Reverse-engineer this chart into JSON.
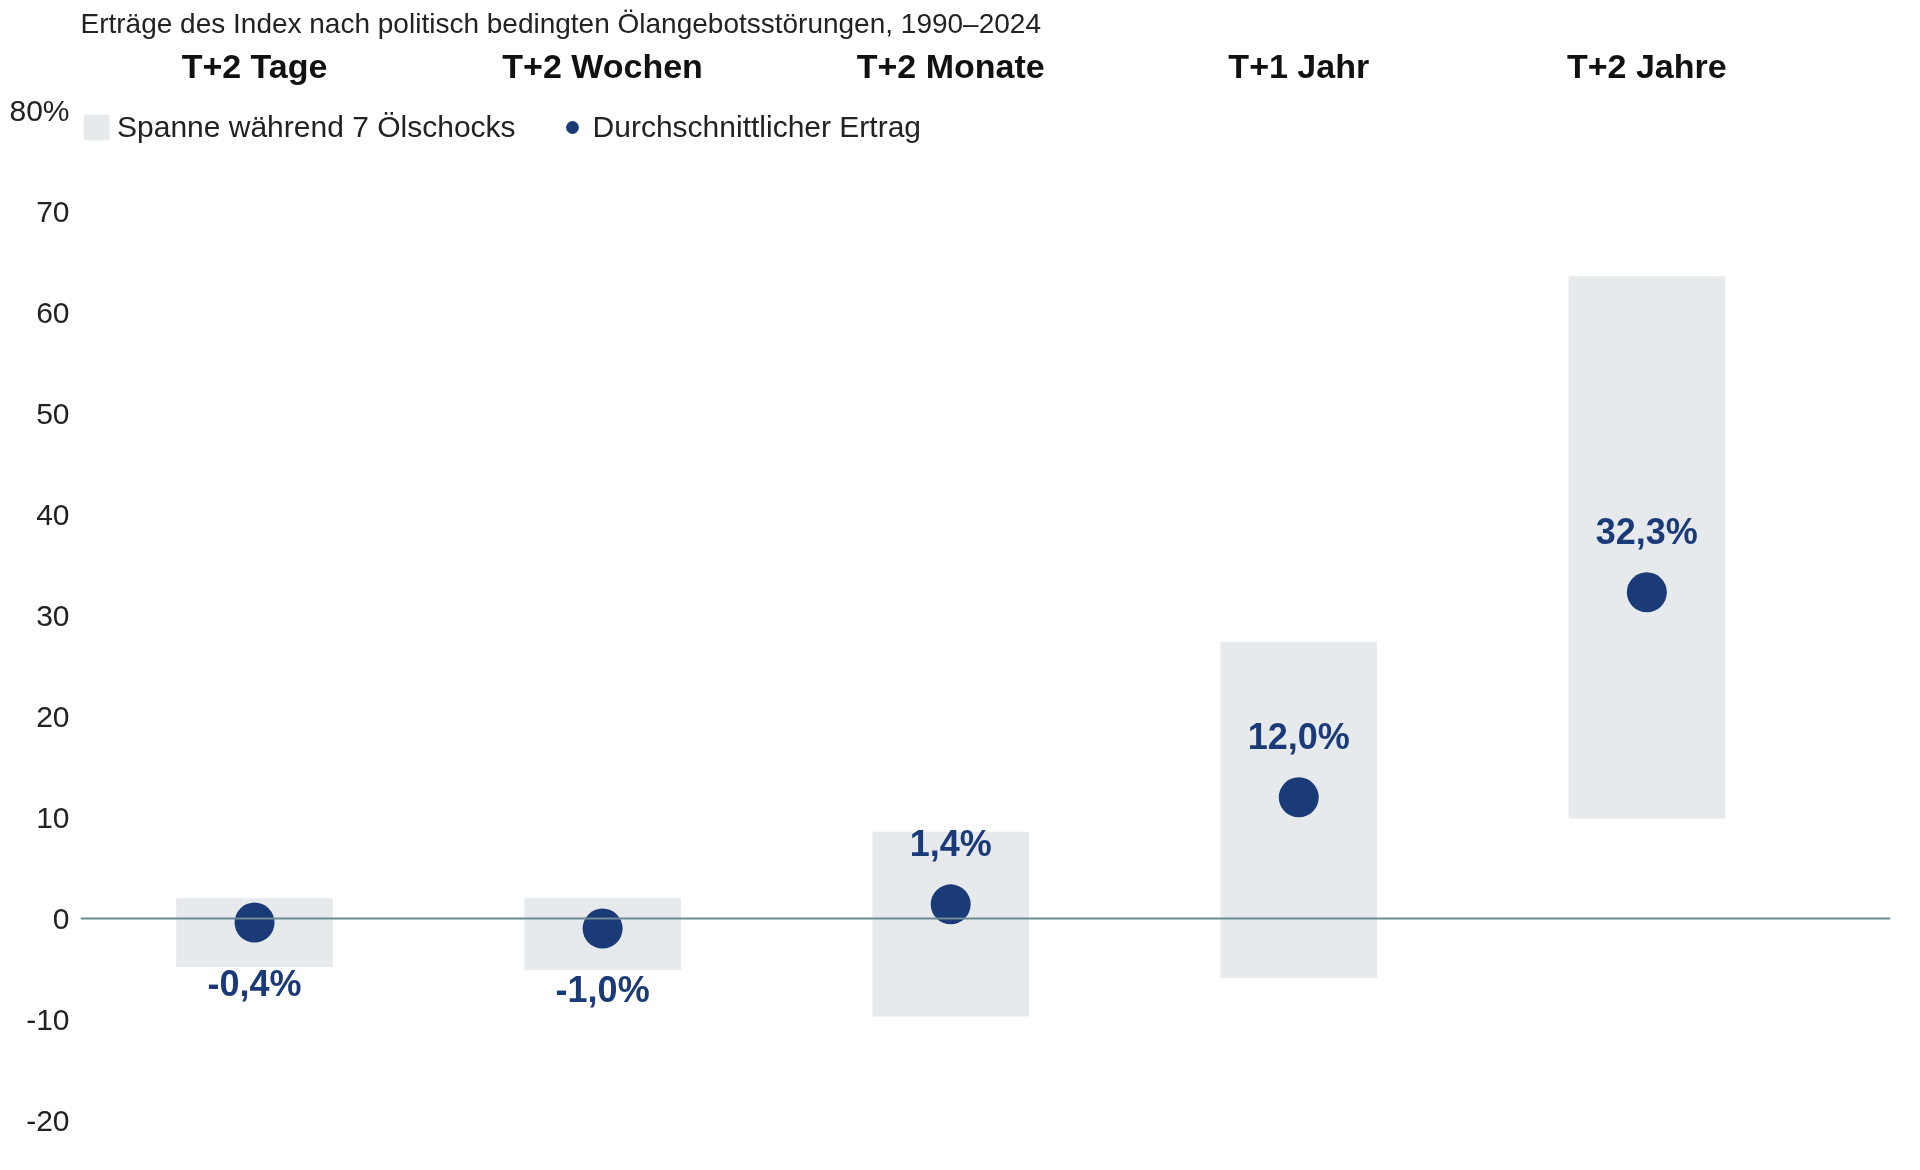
{
  "chart_data": {
    "type": "bar",
    "title": "Erträge des Index nach politisch bedingten Ölangebotsstörungen, 1990–2024",
    "categories": [
      "T+2 Tage",
      "T+2 Wochen",
      "T+2 Monate",
      "T+1 Jahr",
      "T+2 Jahre"
    ],
    "series": [
      {
        "name": "Spanne während 7 Ölschocks",
        "color": "#e6eaed",
        "base": [
          -4.8,
          -5.1,
          -9.7,
          -5.9,
          9.9
        ],
        "values": [
          6.8,
          7.1,
          18.3,
          33.3,
          53.7
        ]
      },
      {
        "name": "Durchschnittlicher Ertrag",
        "type": "scatter",
        "color": "#1b3a78",
        "values": [
          -0.4,
          -1.0,
          1.4,
          12.0,
          32.3
        ],
        "value_labels": [
          "-0,4%",
          "-1,0%",
          "1,4%",
          "12,0%",
          "32,3%"
        ]
      }
    ],
    "ylim": [
      -20,
      80
    ],
    "yticks": [
      {
        "value": 80,
        "label": "80%"
      },
      70,
      60,
      50,
      40,
      30,
      20,
      10,
      0,
      -10,
      -20
    ],
    "ref_lines": [
      {
        "axis": "y",
        "value": 0,
        "label": null,
        "color": "#6e8a96"
      }
    ],
    "grid": false,
    "legend": "top left",
    "marker": "circle"
  }
}
